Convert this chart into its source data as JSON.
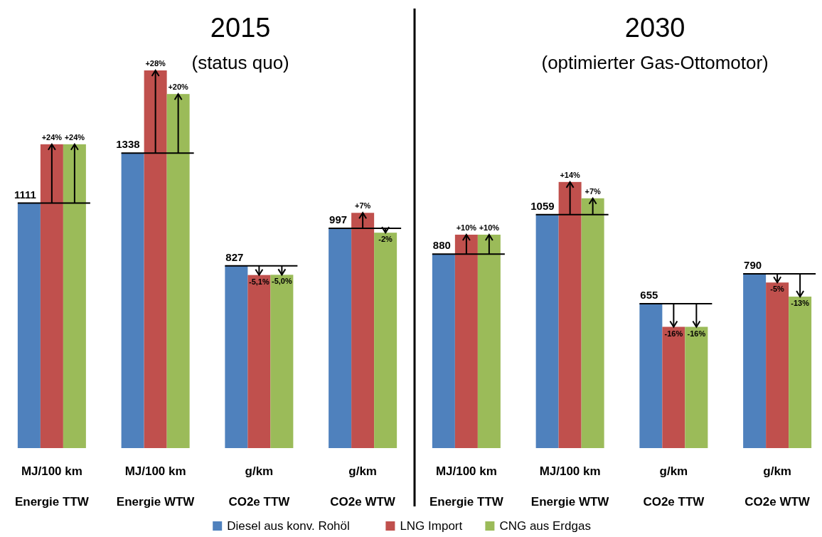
{
  "chart_data": [
    {
      "type": "bar",
      "title": "2015",
      "subtitle": "(status quo)",
      "categories": [
        "MJ/100 km\nEnergie TTW",
        "MJ/100 km\nEnergie WTW",
        "g/km\nCO2e TTW",
        "g/km\nCO2e WTW"
      ],
      "legend": "bottom",
      "series": [
        {
          "name": "Diesel aus konv. Rohöl",
          "color": "#4f81bd",
          "values": [
            1111,
            1338,
            827,
            997
          ],
          "value_labels": [
            "1111",
            "1338",
            "827",
            "997"
          ]
        },
        {
          "name": "LNG Import",
          "color": "#c0504d",
          "values": [
            1378,
            1713,
            785,
            1067
          ]
        },
        {
          "name": "CNG aus Erdgas",
          "color": "#9bbb59",
          "values": [
            1378,
            1606,
            786,
            977
          ]
        }
      ],
      "annotations": [
        "+24%",
        "+28%",
        "-5,1%",
        "+7%",
        "+24%",
        "+20%",
        "-5,0%",
        "-2%"
      ]
    },
    {
      "type": "bar",
      "title": "2030",
      "subtitle": "(optimierter Gas-Ottomotor)",
      "categories": [
        "MJ/100 km\nEnergie TTW",
        "MJ/100 km\nEnergie WTW",
        "g/km\nCO2e TTW",
        "g/km\nCO2e WTW"
      ],
      "series": [
        {
          "color": "#4f81bd",
          "values": [
            880,
            1059,
            655,
            790
          ],
          "value_labels": [
            "880",
            "1059",
            "655",
            "790"
          ]
        },
        {
          "color": "#c0504d",
          "values": [
            968,
            1207,
            550,
            751
          ]
        },
        {
          "color": "#9bbb59",
          "values": [
            968,
            1133,
            550,
            687
          ]
        }
      ],
      "annotations": [
        "+10%",
        "+14%",
        "-16%",
        "-5%",
        "+10%",
        "+7%",
        "-16%",
        "-13%"
      ]
    }
  ]
}
